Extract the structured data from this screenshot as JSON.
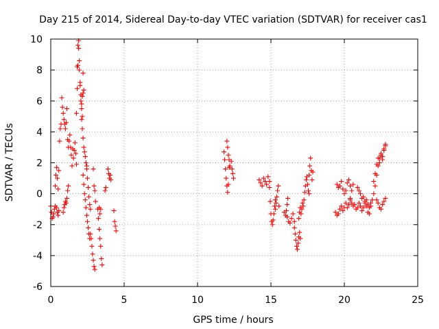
{
  "chart_data": {
    "type": "scatter",
    "title": "Day 215 of 2014, Sidereal Day-to-day VTEC variation (SDTVAR) for receiver cas1",
    "xlabel": "GPS time / hours",
    "ylabel": "SDTVAR / TECUs",
    "xlim": [
      0,
      25
    ],
    "ylim": [
      -6,
      10
    ],
    "xticks": [
      0,
      5,
      10,
      15,
      20,
      25
    ],
    "yticks": [
      -6,
      -4,
      -2,
      0,
      2,
      4,
      6,
      8,
      10
    ],
    "grid": true,
    "marker": "+",
    "marker_color": "#ff0000",
    "series": [
      {
        "name": "SDTVAR",
        "segments": [
          {
            "x": [
              0.0,
              0.05,
              0.1,
              0.15,
              0.2,
              0.25,
              0.3
            ],
            "y": [
              -0.8,
              -1.2,
              -1.6,
              -1.5,
              -1.3,
              -1.0,
              -0.8
            ]
          },
          {
            "x": [
              0.3,
              0.35,
              0.4,
              0.45,
              0.5
            ],
            "y": [
              0.5,
              1.2,
              1.7,
              1.0,
              0.3
            ]
          },
          {
            "x": [
              0.4,
              0.45,
              0.5,
              0.55
            ],
            "y": [
              -0.9,
              -1.2,
              -1.4,
              -1.1
            ]
          },
          {
            "x": [
              0.55,
              0.6,
              0.65,
              0.7,
              0.75,
              0.8,
              0.85,
              0.9,
              0.95,
              1.0,
              1.05,
              1.1
            ],
            "y": [
              1.5,
              3.4,
              4.2,
              4.5,
              6.2,
              5.6,
              5.2,
              4.8,
              4.5,
              4.2,
              4.6,
              5.5
            ]
          },
          {
            "x": [
              0.85,
              0.9,
              0.95,
              1.0,
              1.05,
              1.1,
              1.15,
              1.2
            ],
            "y": [
              -1.2,
              -0.9,
              -0.7,
              -0.5,
              -0.6,
              -0.3,
              0.2,
              0.5
            ]
          },
          {
            "x": [
              1.15,
              1.2,
              1.25,
              1.3,
              1.35,
              1.4,
              1.45,
              1.5
            ],
            "y": [
              3.5,
              3.0,
              3.4,
              3.8,
              3.0,
              2.5,
              1.8,
              2.9
            ]
          },
          {
            "x": [
              1.55,
              1.6,
              1.65,
              1.7,
              1.75
            ],
            "y": [
              2.3,
              2.8,
              3.3,
              2.6,
              1.9
            ]
          },
          {
            "x": [
              1.75,
              1.8,
              1.85,
              1.9,
              1.95,
              2.0,
              2.05,
              2.1,
              2.15,
              2.2
            ],
            "y": [
              5.2,
              6.8,
              8.3,
              9.4,
              8.6,
              7.2,
              6.4,
              5.8,
              5.0,
              6.5
            ]
          },
          {
            "x": [
              1.8,
              1.85,
              1.9,
              1.95,
              2.0,
              2.05,
              2.1,
              2.15,
              2.2,
              2.25
            ],
            "y": [
              8.2,
              9.6,
              9.9,
              8.0,
              7.0,
              6.0,
              5.5,
              6.3,
              7.8,
              6.7
            ]
          },
          {
            "x": [
              2.1,
              2.15,
              2.2,
              2.25,
              2.3,
              2.35,
              2.4,
              2.45
            ],
            "y": [
              4.8,
              4.2,
              3.6,
              3.0,
              2.7,
              2.4,
              2.0,
              1.8
            ]
          },
          {
            "x": [
              2.2,
              2.25,
              2.3,
              2.35,
              2.4,
              2.45,
              2.5,
              2.55,
              2.6,
              2.65,
              2.7
            ],
            "y": [
              1.2,
              0.6,
              0.0,
              -0.4,
              -0.9,
              -1.4,
              -1.8,
              -2.2,
              -2.6,
              -2.9,
              -2.6
            ]
          },
          {
            "x": [
              2.45,
              2.5,
              2.55,
              2.6,
              2.65,
              2.7
            ],
            "y": [
              1.6,
              1.0,
              0.4,
              -0.2,
              -0.7,
              -1.0
            ]
          },
          {
            "x": [
              2.75,
              2.8,
              2.85,
              2.9,
              2.95,
              3.0
            ],
            "y": [
              -2.9,
              -3.4,
              -3.9,
              -4.3,
              -4.7,
              -4.9
            ]
          },
          {
            "x": [
              2.9,
              2.95,
              3.0,
              3.05
            ],
            "y": [
              1.6,
              0.5,
              0.2,
              -0.5
            ]
          },
          {
            "x": [
              3.2,
              3.25,
              3.3,
              3.35,
              3.4,
              3.45,
              3.5
            ],
            "y": [
              -1.0,
              -1.6,
              -2.3,
              -2.9,
              -3.4,
              -4.2,
              -4.6
            ]
          },
          {
            "x": [
              3.3,
              3.35,
              3.4
            ],
            "y": [
              -0.9,
              -1.3,
              -1.0
            ]
          },
          {
            "x": [
              3.7,
              3.75
            ],
            "y": [
              0.2,
              0.4
            ]
          },
          {
            "x": [
              3.9,
              3.95,
              4.0,
              4.05,
              4.1
            ],
            "y": [
              1.6,
              1.3,
              1.0,
              1.2,
              0.9
            ]
          },
          {
            "x": [
              4.3,
              4.35,
              4.4,
              4.45
            ],
            "y": [
              -1.1,
              -1.8,
              -2.1,
              -2.4
            ]
          },
          {
            "x": [
              11.8,
              11.85,
              11.9,
              11.95,
              12.0,
              12.05,
              12.1,
              12.15
            ],
            "y": [
              2.7,
              2.2,
              1.6,
              1.0,
              0.5,
              0.1,
              0.6,
              1.7
            ]
          },
          {
            "x": [
              12.0,
              12.05,
              12.1,
              12.15,
              12.2
            ],
            "y": [
              3.4,
              3.0,
              2.5,
              2.2,
              1.8
            ]
          },
          {
            "x": [
              12.3,
              12.35,
              12.4,
              12.45
            ],
            "y": [
              2.1,
              1.6,
              1.3,
              1.0
            ]
          },
          {
            "x": [
              14.2,
              14.3,
              14.4,
              14.5,
              14.6,
              14.7,
              14.8,
              14.9
            ],
            "y": [
              0.9,
              0.7,
              0.5,
              1.0,
              0.8,
              0.6,
              1.1,
              0.8
            ]
          },
          {
            "x": [
              14.9,
              14.95,
              15.0,
              15.05,
              15.1,
              15.15,
              15.2,
              15.25,
              15.3
            ],
            "y": [
              0.4,
              -0.5,
              -1.3,
              -1.8,
              -2.0,
              -1.7,
              -1.3,
              -0.8,
              -0.4
            ]
          },
          {
            "x": [
              15.3,
              15.35,
              15.4,
              15.45,
              15.5,
              15.55
            ],
            "y": [
              -1.0,
              -0.6,
              -0.2,
              0.2,
              0.5,
              -0.8
            ]
          },
          {
            "x": [
              15.9,
              16.0,
              16.05,
              16.1,
              16.15
            ],
            "y": [
              -1.2,
              -1.4,
              -1.1,
              -0.7,
              -0.3
            ]
          },
          {
            "x": [
              16.1,
              16.2,
              16.3,
              16.4,
              16.5,
              16.6
            ],
            "y": [
              -1.5,
              -1.8,
              -1.9,
              -1.6,
              -1.3,
              -1.8
            ]
          },
          {
            "x": [
              16.6,
              16.65,
              16.7,
              16.75,
              16.8,
              16.85,
              16.9,
              16.95,
              17.0
            ],
            "y": [
              -2.2,
              -2.6,
              -3.0,
              -3.4,
              -3.6,
              -3.2,
              -2.8,
              -2.5,
              -2.9
            ]
          },
          {
            "x": [
              16.9,
              16.95,
              17.0,
              17.05,
              17.1,
              17.15
            ],
            "y": [
              -1.6,
              -1.2,
              -0.9,
              -1.3,
              -1.0,
              -0.6
            ]
          },
          {
            "x": [
              17.2,
              17.25,
              17.3,
              17.35,
              17.4,
              17.45,
              17.5,
              17.55,
              17.6
            ],
            "y": [
              -0.8,
              -0.4,
              0.1,
              0.5,
              0.9,
              1.1,
              0.6,
              0.2,
              0.0
            ]
          },
          {
            "x": [
              17.6,
              17.65,
              17.7,
              17.75,
              17.8,
              17.85
            ],
            "y": [
              1.2,
              1.8,
              2.3,
              1.5,
              0.9,
              1.4
            ]
          },
          {
            "x": [
              19.4,
              19.5,
              19.6,
              19.7,
              19.8,
              19.9,
              20.0,
              20.1,
              20.2,
              20.3,
              20.4
            ],
            "y": [
              -1.2,
              -1.4,
              -1.3,
              -1.0,
              -0.8,
              -1.1,
              -0.9,
              -0.6,
              -0.9,
              -0.7,
              -0.4
            ]
          },
          {
            "x": [
              19.5,
              19.6,
              19.7,
              19.8,
              19.9,
              20.0,
              20.1,
              20.2,
              20.3,
              20.4,
              20.5,
              20.6
            ],
            "y": [
              0.6,
              0.4,
              0.5,
              0.8,
              0.3,
              0.0,
              0.2,
              0.7,
              0.9,
              0.5,
              0.2,
              0.6
            ]
          },
          {
            "x": [
              20.4,
              20.5,
              20.6,
              20.7,
              20.8,
              20.9,
              21.0,
              21.1,
              21.2,
              21.3,
              21.4,
              21.5,
              21.6,
              21.7
            ],
            "y": [
              -0.3,
              -0.6,
              -0.8,
              -0.7,
              -1.0,
              -0.9,
              -0.6,
              -0.8,
              -1.1,
              -0.9,
              -0.6,
              -0.8,
              -1.2,
              -1.3
            ]
          },
          {
            "x": [
              20.9,
              21.0,
              21.1,
              21.2,
              21.3,
              21.4,
              21.5,
              21.6,
              21.7,
              21.8
            ],
            "y": [
              0.4,
              0.2,
              0.0,
              -0.3,
              -0.2,
              -0.5,
              -0.4,
              -0.7,
              -0.9,
              -0.6
            ]
          },
          {
            "x": [
              21.8,
              21.9,
              22.0,
              22.1,
              22.2,
              22.3,
              22.4,
              22.5,
              22.6,
              22.7,
              22.8
            ],
            "y": [
              -0.8,
              -0.4,
              0.0,
              0.5,
              1.2,
              1.8,
              2.3,
              2.6,
              2.4,
              2.8,
              3.1
            ]
          },
          {
            "x": [
              22.0,
              22.1,
              22.2,
              22.3,
              22.4,
              22.5,
              22.6,
              22.7,
              22.8
            ],
            "y": [
              0.8,
              1.3,
              1.9,
              2.3,
              2.0,
              2.5,
              2.2,
              2.9,
              3.2
            ]
          },
          {
            "x": [
              22.2,
              22.3,
              22.4,
              22.5,
              22.6,
              22.7,
              22.8
            ],
            "y": [
              -0.4,
              -0.6,
              -0.9,
              -1.0,
              -0.7,
              -0.5,
              -0.3
            ]
          }
        ]
      }
    ]
  }
}
